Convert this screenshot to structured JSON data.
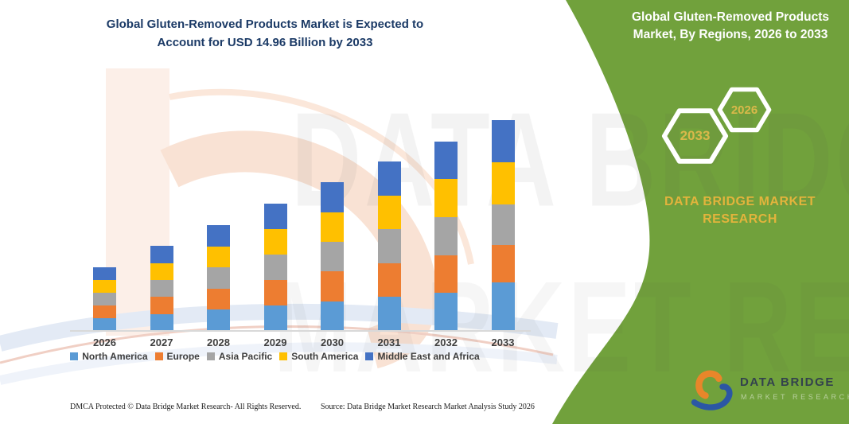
{
  "header": {
    "title_line1": "Global Gluten-Removed Products Market is Expected to",
    "title_line2": "Account for USD 14.96 Billion by 2033"
  },
  "right_panel": {
    "title_line1": "Global Gluten-Removed Products",
    "title_line2": "Market, By Regions, 2026 to 2033",
    "hex_year_back": "2033",
    "hex_year_front": "2026",
    "brand_line1": "DATA BRIDGE MARKET",
    "brand_line2": "RESEARCH",
    "panel_color": "#71A13C",
    "accent_gold": "#E2B43C"
  },
  "watermark": {
    "line1": "DATA BRIDGE",
    "line2": "MARKET RESEARCH"
  },
  "chart_data": {
    "type": "bar",
    "stacked": true,
    "title": "Global Gluten-Removed Products Market is Expected to Account for USD 14.96 Billion by 2033",
    "unit": "USD Billion",
    "categories": [
      "2026",
      "2027",
      "2028",
      "2029",
      "2030",
      "2031",
      "2032",
      "2033"
    ],
    "series": [
      {
        "name": "North America",
        "color": "#5B9BD5",
        "values": [
          0.9,
          1.2,
          1.5,
          1.8,
          2.11,
          2.41,
          2.69,
          3.45
        ]
      },
      {
        "name": "Europe",
        "color": "#ED7D31",
        "values": [
          0.9,
          1.2,
          1.5,
          1.8,
          2.1,
          2.4,
          2.68,
          2.63
        ]
      },
      {
        "name": "Asia Pacific",
        "color": "#A5A5A5",
        "values": [
          0.9,
          1.2,
          1.49,
          1.8,
          2.1,
          2.4,
          2.69,
          2.92
        ]
      },
      {
        "name": "South America",
        "color": "#FFC000",
        "values": [
          0.9,
          1.2,
          1.5,
          1.81,
          2.11,
          2.41,
          2.69,
          2.95
        ]
      },
      {
        "name": "Middle East and Africa",
        "color": "#4472C4",
        "values": [
          0.91,
          1.21,
          1.49,
          1.81,
          2.11,
          2.41,
          2.69,
          3.01
        ]
      }
    ],
    "totals": [
      4.51,
      6.01,
      7.48,
      9.02,
      10.53,
      12.03,
      13.44,
      14.96
    ],
    "ylim": [
      0,
      15
    ],
    "grid": false,
    "y_axis_visible": false,
    "legend_position": "bottom"
  },
  "footer": {
    "dmca": "DMCA Protected © Data Bridge Market Research-  All Rights Reserved.",
    "source": "Source: Data Bridge Market Research  Market Analysis Study 2026"
  },
  "logo": {
    "name_text": "DATA BRIDGE",
    "sub_text": "MARKET RESEARCH"
  }
}
